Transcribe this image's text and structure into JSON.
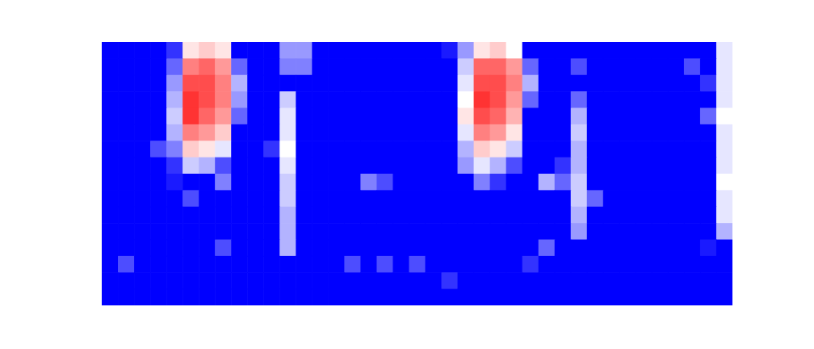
{
  "chart_data": {
    "type": "heatmap",
    "tick_labels": false,
    "zlim": [
      0,
      1
    ],
    "colors": [
      "#0000ff",
      "#ffffff",
      "#ff0000"
    ],
    "cells": [
      [
        0,
        0,
        0,
        0,
        0.1,
        0.55,
        0.6,
        0.55,
        0,
        0,
        0,
        0.3,
        0.3,
        0,
        0,
        0,
        0,
        0,
        0,
        0,
        0,
        0.05,
        0.3,
        0.55,
        0.6,
        0.5,
        0,
        0,
        0,
        0,
        0,
        0,
        0,
        0,
        0,
        0,
        0,
        0,
        0.45
      ],
      [
        0,
        0,
        0,
        0,
        0.2,
        0.75,
        0.8,
        0.7,
        0.2,
        0,
        0,
        0.25,
        0.25,
        0,
        0,
        0,
        0,
        0,
        0,
        0,
        0,
        0,
        0.4,
        0.8,
        0.8,
        0.7,
        0.2,
        0,
        0,
        0.15,
        0,
        0,
        0,
        0,
        0,
        0,
        0.15,
        0,
        0.45
      ],
      [
        0,
        0,
        0,
        0,
        0.3,
        0.85,
        0.85,
        0.75,
        0.35,
        0,
        0,
        0,
        0,
        0,
        0,
        0,
        0,
        0,
        0,
        0,
        0,
        0,
        0.45,
        0.85,
        0.85,
        0.75,
        0.35,
        0,
        0,
        0,
        0,
        0,
        0,
        0,
        0,
        0,
        0,
        0.1,
        0.45
      ],
      [
        0,
        0,
        0,
        0,
        0.35,
        0.9,
        0.85,
        0.75,
        0.3,
        0,
        0,
        0.4,
        0,
        0,
        0,
        0,
        0,
        0,
        0,
        0,
        0,
        0,
        0.5,
        0.9,
        0.85,
        0.7,
        0.2,
        0,
        0,
        0.2,
        0,
        0,
        0,
        0,
        0,
        0,
        0,
        0,
        0.45
      ],
      [
        0,
        0,
        0,
        0,
        0.4,
        0.9,
        0.8,
        0.7,
        0.2,
        0,
        0,
        0.45,
        0,
        0,
        0,
        0,
        0,
        0,
        0,
        0,
        0,
        0,
        0.55,
        0.85,
        0.8,
        0.65,
        0,
        0,
        0,
        0.35,
        0,
        0,
        0,
        0,
        0,
        0,
        0,
        0.2,
        0.5
      ],
      [
        0,
        0,
        0,
        0,
        0.35,
        0.75,
        0.7,
        0.6,
        0,
        0,
        0,
        0.45,
        0,
        0,
        0,
        0,
        0,
        0,
        0,
        0,
        0,
        0,
        0.45,
        0.75,
        0.7,
        0.55,
        0,
        0,
        0,
        0.4,
        0,
        0,
        0,
        0,
        0,
        0,
        0,
        0,
        0.45
      ],
      [
        0,
        0,
        0,
        0.15,
        0.25,
        0.6,
        0.55,
        0.45,
        0,
        0,
        0.1,
        0.5,
        0,
        0,
        0,
        0,
        0,
        0,
        0,
        0,
        0,
        0,
        0.35,
        0.6,
        0.55,
        0.4,
        0,
        0,
        0,
        0.35,
        0,
        0,
        0,
        0,
        0,
        0,
        0,
        0,
        0.45
      ],
      [
        0,
        0,
        0,
        0,
        0.1,
        0.4,
        0.35,
        0.15,
        0,
        0,
        0,
        0.45,
        0,
        0,
        0,
        0,
        0,
        0,
        0,
        0,
        0,
        0,
        0.3,
        0.45,
        0.35,
        0.15,
        0,
        0,
        0.1,
        0.35,
        0,
        0,
        0,
        0,
        0,
        0,
        0,
        0,
        0.45
      ],
      [
        0,
        0,
        0,
        0,
        0.05,
        0,
        0,
        0.25,
        0,
        0,
        0,
        0.4,
        0,
        0,
        0,
        0,
        0.25,
        0.15,
        0,
        0,
        0,
        0,
        0,
        0.25,
        0.1,
        0,
        0,
        0.35,
        0.2,
        0.4,
        0,
        0,
        0,
        0,
        0,
        0,
        0,
        0,
        0.5
      ],
      [
        0,
        0,
        0,
        0,
        0,
        0.15,
        0,
        0,
        0,
        0,
        0,
        0.4,
        0,
        0,
        0,
        0,
        0,
        0,
        0,
        0,
        0,
        0,
        0,
        0,
        0,
        0,
        0,
        0,
        0,
        0.4,
        0.2,
        0,
        0,
        0,
        0,
        0,
        0,
        0,
        0.45
      ],
      [
        0,
        0,
        0,
        0,
        0,
        0,
        0,
        0,
        0,
        0,
        0,
        0.35,
        0,
        0,
        0,
        0,
        0,
        0,
        0,
        0,
        0,
        0,
        0,
        0,
        0,
        0,
        0,
        0,
        0,
        0.35,
        0,
        0,
        0,
        0,
        0,
        0,
        0,
        0,
        0.45
      ],
      [
        0,
        0,
        0,
        0,
        0,
        0,
        0,
        0,
        0,
        0,
        0,
        0.35,
        0,
        0,
        0,
        0,
        0,
        0,
        0,
        0,
        0,
        0,
        0,
        0,
        0,
        0,
        0,
        0,
        0,
        0.3,
        0,
        0,
        0,
        0,
        0,
        0,
        0,
        0,
        0.35
      ],
      [
        0,
        0,
        0,
        0,
        0,
        0,
        0,
        0.15,
        0,
        0,
        0,
        0.35,
        0,
        0,
        0,
        0,
        0,
        0,
        0,
        0,
        0,
        0,
        0,
        0,
        0,
        0,
        0,
        0.2,
        0,
        0,
        0,
        0,
        0,
        0,
        0,
        0,
        0,
        0.05,
        0
      ],
      [
        0,
        0.15,
        0,
        0,
        0,
        0,
        0,
        0,
        0,
        0,
        0,
        0,
        0,
        0,
        0,
        0.15,
        0,
        0.15,
        0,
        0.15,
        0,
        0,
        0,
        0,
        0,
        0,
        0.1,
        0,
        0,
        0,
        0,
        0,
        0,
        0,
        0,
        0,
        0,
        0,
        0
      ],
      [
        0,
        0,
        0,
        0,
        0,
        0,
        0,
        0,
        0,
        0,
        0,
        0,
        0,
        0,
        0,
        0,
        0,
        0,
        0,
        0,
        0,
        0.1,
        0,
        0,
        0,
        0,
        0,
        0,
        0,
        0,
        0,
        0,
        0,
        0,
        0,
        0,
        0,
        0,
        0
      ],
      [
        0,
        0,
        0,
        0,
        0,
        0,
        0,
        0,
        0,
        0,
        0,
        0,
        0,
        0,
        0,
        0,
        0,
        0,
        0,
        0,
        0,
        0,
        0,
        0,
        0,
        0,
        0,
        0,
        0,
        0,
        0,
        0,
        0,
        0,
        0,
        0,
        0,
        0,
        0
      ]
    ]
  }
}
